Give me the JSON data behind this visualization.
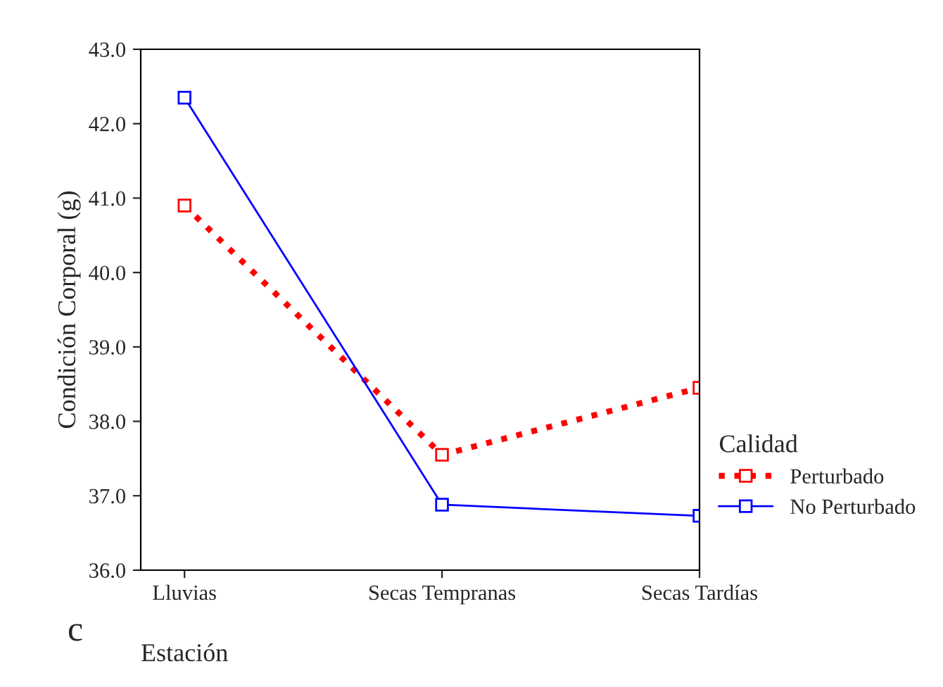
{
  "chart_data": {
    "type": "line",
    "xlabel": "Estación",
    "ylabel": "Condición Corporal (g)",
    "legend_title": "Calidad",
    "categories": [
      "Lluvias",
      "Secas Tempranas",
      "Secas Tardías"
    ],
    "series": [
      {
        "name": "Perturbado",
        "color": "#ff0000",
        "line_style": "dotted",
        "values": [
          40.9,
          37.55,
          38.45
        ]
      },
      {
        "name": "No Perturbado",
        "color": "#0000ff",
        "line_style": "solid",
        "values": [
          42.35,
          36.88,
          36.73
        ]
      }
    ],
    "ylim": [
      36.0,
      43.0
    ],
    "yticks": [
      {
        "value": 36,
        "label": "36.0"
      },
      {
        "value": 37,
        "label": "37.0"
      },
      {
        "value": 38,
        "label": "38.0"
      },
      {
        "value": 39,
        "label": "39.0"
      },
      {
        "value": 40,
        "label": "40.0"
      },
      {
        "value": 41,
        "label": "41.0"
      },
      {
        "value": 42,
        "label": "42.0"
      },
      {
        "value": 43,
        "label": "43.0"
      }
    ],
    "marker": "square",
    "grid": false,
    "legend": "right",
    "annotations": [
      "c"
    ]
  }
}
